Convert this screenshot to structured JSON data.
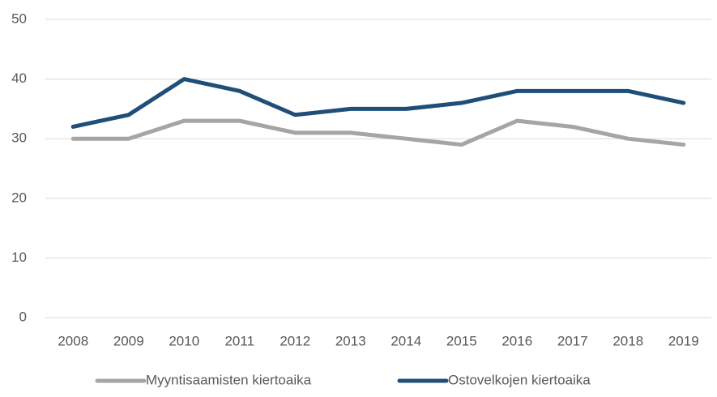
{
  "chart_data": {
    "type": "line",
    "categories": [
      "2008",
      "2009",
      "2010",
      "2011",
      "2012",
      "2013",
      "2014",
      "2015",
      "2016",
      "2017",
      "2018",
      "2019"
    ],
    "series": [
      {
        "name": "Myyntisaamisten kiertoaika",
        "color": "#a5a5a5",
        "values": [
          30,
          30,
          33,
          33,
          31,
          31,
          30,
          29,
          33,
          32,
          30,
          29
        ]
      },
      {
        "name": "Ostovelkojen kiertoaika",
        "color": "#1f4e79",
        "values": [
          32,
          34,
          40,
          38,
          34,
          35,
          35,
          36,
          38,
          38,
          38,
          36
        ]
      }
    ],
    "ylim": [
      0,
      50
    ],
    "yticks": [
      0,
      10,
      20,
      30,
      40,
      50
    ],
    "grid": true,
    "legend": "bottom"
  }
}
